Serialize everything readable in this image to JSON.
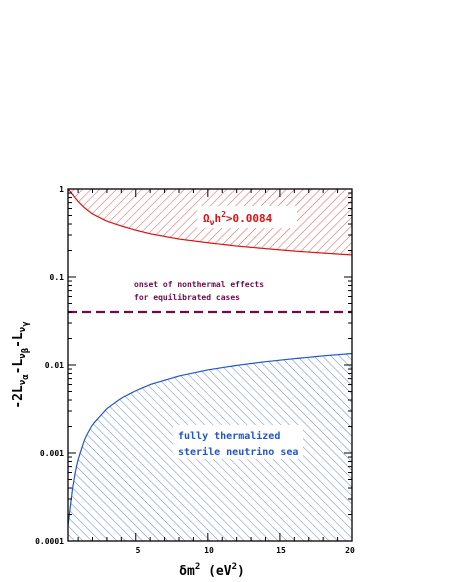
{
  "chart_data": {
    "type": "area",
    "x_scale": "linear",
    "y_scale": "log",
    "xlim": [
      0.3,
      20
    ],
    "ylim": [
      0.0001,
      1
    ],
    "x_ticks": [
      5,
      10,
      15,
      20
    ],
    "x_tick_labels": [
      "5",
      "10",
      "15",
      "20"
    ],
    "y_ticks": [
      0.0001,
      0.001,
      0.01,
      0.1,
      1
    ],
    "y_tick_labels": [
      "0.0001",
      "0.001",
      "0.01",
      "0.1",
      "1"
    ],
    "xlabel": {
      "prefix": "δ",
      "main": "m",
      "sup": "2",
      "units_open": " (eV",
      "units_sup": "2",
      "units_close": ")"
    },
    "ylabel": {
      "part1": "-2L",
      "sub1": "ν",
      "sub1b": "α",
      "part2": "-L",
      "sub2": "ν",
      "sub2b": "β",
      "part3": "-L",
      "sub3": "ν",
      "sub3b": "γ"
    },
    "series": [
      {
        "color": "#e01010",
        "fill": "above",
        "hatch": "down-diagonal",
        "x": [
          0.3,
          0.5,
          0.7,
          1,
          1.5,
          2,
          3,
          4,
          5,
          6,
          8,
          10,
          12,
          14,
          16,
          18,
          20
        ],
        "y": [
          1.0,
          0.92,
          0.83,
          0.72,
          0.6,
          0.52,
          0.43,
          0.38,
          0.34,
          0.31,
          0.27,
          0.245,
          0.225,
          0.21,
          0.197,
          0.187,
          0.178
        ]
      },
      {
        "color": "#2255cc",
        "fill": "below",
        "hatch": "up-diagonal",
        "x": [
          0.3,
          0.4,
          0.5,
          0.7,
          1,
          1.5,
          2,
          3,
          4,
          5,
          6,
          8,
          10,
          12,
          14,
          16,
          18,
          20
        ],
        "y": [
          0.00015,
          0.0002,
          0.00028,
          0.0005,
          0.00085,
          0.0015,
          0.0021,
          0.0032,
          0.0042,
          0.0051,
          0.006,
          0.0075,
          0.0088,
          0.0099,
          0.0109,
          0.0118,
          0.0127,
          0.0135
        ]
      },
      {
        "color": "#6e0a4e",
        "style": "dashed",
        "x": [
          0.3,
          20
        ],
        "y": [
          0.04,
          0.04
        ]
      }
    ],
    "annotations": {
      "omega": {
        "greek": "Ω",
        "sub": "ν",
        "h": "h",
        "sup": "2",
        "rest": ">0.0084"
      },
      "onset_line1": "onset of nonthermal effects",
      "onset_line2": "for equilibrated cases",
      "thermal_line1": "fully thermalized",
      "thermal_line2": "sterile neutrino sea"
    }
  }
}
